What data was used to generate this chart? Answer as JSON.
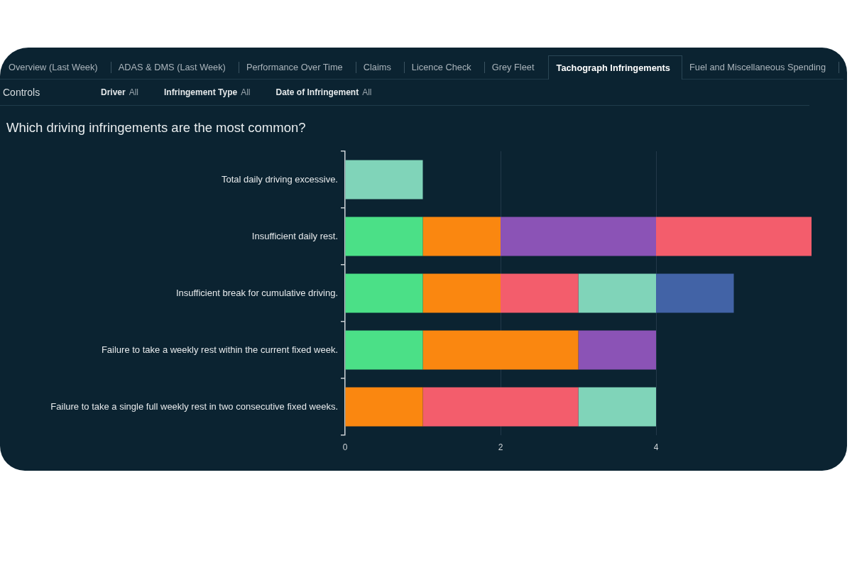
{
  "chart_data": [
    {
      "type": "other",
      "annotations": [
        "Overview (Last Week)",
        "ADAS & DMS (Last Week)",
        "Performance Over Time",
        "Claims",
        "Licence Check",
        "Grey Fleet",
        "Tachograph Infringements",
        "Fuel and Miscellaneous Spending"
      ]
    },
    {
      "type": "other",
      "title": "Controls",
      "annotations": [
        "Driver",
        "All",
        "Infringement Type",
        "All",
        "Date of Infringement",
        "All"
      ]
    },
    {
      "type": "bar",
      "orientation": "horizontal",
      "stacked": true,
      "title": "Which driving infringements are the most common?",
      "categories": [
        "Total daily driving excessive.",
        "Insufficient daily rest.",
        "Insufficient break for cumulative driving.",
        "Failure to take a weekly rest within the current fixed week.",
        "Failure to take a single full weekly rest in two consecutive fixed weeks."
      ],
      "series": [
        {
          "color": "#4be087",
          "values": [
            null,
            1,
            1,
            1,
            null
          ]
        },
        {
          "color": "#fa8710",
          "values": [
            null,
            1,
            1,
            2,
            1
          ]
        },
        {
          "color": "#8b53b6",
          "values": [
            null,
            2,
            null,
            1,
            null
          ]
        },
        {
          "color": "#f35d6c",
          "values": [
            null,
            2,
            1,
            null,
            2
          ]
        },
        {
          "color": "#80d4b9",
          "values": [
            1,
            null,
            1,
            null,
            1
          ]
        },
        {
          "color": "#4263a6",
          "values": [
            null,
            null,
            1,
            null,
            null
          ]
        }
      ],
      "xlim": [
        0,
        6
      ],
      "xticks": [
        0,
        2,
        4
      ],
      "grid": "x",
      "legend": false
    }
  ]
}
